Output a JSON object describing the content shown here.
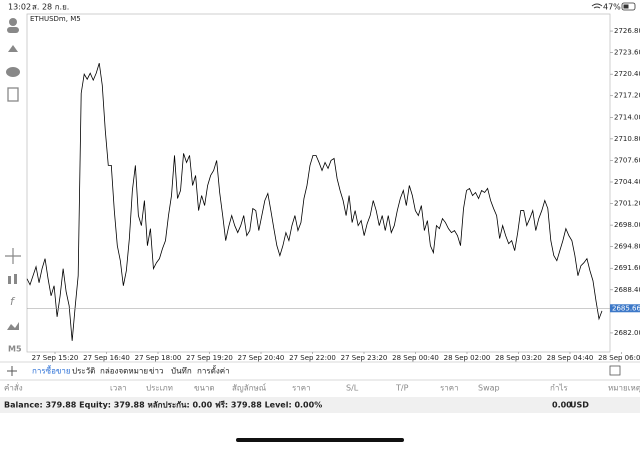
{
  "status_bar": {
    "time": "13:02",
    "date": "ส. 28 ก.ย.",
    "battery": "47%"
  },
  "chart_data": {
    "type": "line",
    "title": "ETHUSDm, M5",
    "color": "#000000",
    "values": [
      2690.04,
      2689.15,
      2690.49,
      2691.83,
      2689.45,
      2691.53,
      2693.02,
      2690.04,
      2687.51,
      2689.0,
      2684.39,
      2687.51,
      2691.53,
      2688.11,
      2686.03,
      2680.82,
      2685.88,
      2690.49,
      2717.57,
      2720.4,
      2719.65,
      2720.55,
      2719.51,
      2720.55,
      2722.04,
      2718.76,
      2712.07,
      2706.86,
      2706.86,
      2700.16,
      2694.95,
      2692.72,
      2689.0,
      2691.23,
      2696.0,
      2703.14,
      2706.86,
      2699.42,
      2697.93,
      2701.65,
      2694.95,
      2697.48,
      2691.53,
      2692.42,
      2693.02,
      2694.51,
      2695.7,
      2699.42,
      2702.39,
      2708.35,
      2701.95,
      2703.14,
      2708.64,
      2707.3,
      2708.35,
      2703.88,
      2705.37,
      2700.16,
      2702.39,
      2700.91,
      2703.88,
      2705.37,
      2706.11,
      2707.6,
      2702.84,
      2699.42,
      2695.7,
      2697.78,
      2699.42,
      2697.93,
      2696.89,
      2697.93,
      2699.42,
      2696.44,
      2697.19,
      2700.46,
      2700.16,
      2697.19,
      2699.42,
      2701.65,
      2702.69,
      2700.16,
      2697.48,
      2694.95,
      2693.47,
      2694.95,
      2696.89,
      2695.7,
      2697.93,
      2699.42,
      2697.19,
      2698.38,
      2701.95,
      2703.88,
      2706.86,
      2708.35,
      2708.35,
      2707.3,
      2706.11,
      2707.3,
      2706.41,
      2707.6,
      2707.9,
      2704.92,
      2703.14,
      2701.65,
      2699.42,
      2702.39,
      2698.38,
      2700.16,
      2697.93,
      2698.67,
      2696.44,
      2698.23,
      2699.42,
      2701.65,
      2700.16,
      2697.93,
      2699.42,
      2697.19,
      2699.42,
      2696.89,
      2697.93,
      2700.16,
      2701.95,
      2703.14,
      2700.91,
      2703.88,
      2702.39,
      2700.16,
      2699.42,
      2700.91,
      2697.19,
      2698.67,
      2694.95,
      2693.91,
      2697.93,
      2697.48,
      2698.97,
      2698.38,
      2697.48,
      2696.89,
      2697.19,
      2696.44,
      2694.95,
      2700.46,
      2703.14,
      2703.44,
      2702.39,
      2702.84,
      2701.95,
      2703.14,
      2702.84,
      2703.44,
      2701.65,
      2700.46,
      2699.42,
      2696.0,
      2697.93,
      2696.44,
      2695.25,
      2695.7,
      2694.21,
      2696.89,
      2700.16,
      2700.16,
      2697.93,
      2698.97,
      2700.16,
      2697.19,
      2698.97,
      2700.16,
      2701.65,
      2700.46,
      2695.7,
      2693.47,
      2692.72,
      2694.21,
      2695.7,
      2697.48,
      2696.44,
      2695.7,
      2693.47,
      2690.49,
      2691.98,
      2692.42,
      2693.02,
      2691.23,
      2689.75,
      2686.77,
      2684.09,
      2685.28
    ],
    "ylim": [
      2679.17,
      2729.33
    ],
    "yticks": [
      {
        "value": 2726.8,
        "label": "2726.80"
      },
      {
        "value": 2723.6,
        "label": "2723.60"
      },
      {
        "value": 2720.4,
        "label": "2720.40"
      },
      {
        "value": 2717.2,
        "label": "2717.20"
      },
      {
        "value": 2714.0,
        "label": "2714.00"
      },
      {
        "value": 2710.8,
        "label": "2710.80"
      },
      {
        "value": 2707.6,
        "label": "2707.60"
      },
      {
        "value": 2704.4,
        "label": "2704.40"
      },
      {
        "value": 2701.2,
        "label": "2701.20"
      },
      {
        "value": 2698.0,
        "label": "2698.00"
      },
      {
        "value": 2694.8,
        "label": "2694.80"
      },
      {
        "value": 2691.6,
        "label": "2691.60"
      },
      {
        "value": 2688.4,
        "label": "2688.40"
      },
      {
        "value": 2682.0,
        "label": "2682.00"
      }
    ],
    "x_labels": [
      "27 Sep 15:20",
      "27 Sep 16:40",
      "27 Sep 18:00",
      "27 Sep 19:20",
      "27 Sep 20:40",
      "27 Sep 22:00",
      "27 Sep 23:20",
      "28 Sep 00:40",
      "28 Sep 02:00",
      "28 Sep 03:20",
      "28 Sep 04:40",
      "28 Sep 06:00"
    ],
    "last_price": 2685.66
  },
  "tabs": [
    "การซื้อขาย",
    "ประวัติ",
    "กล่องจดหมาย",
    "ข่าว",
    "บันทึก",
    "การตั้งค่า"
  ],
  "columns": [
    "คำสั่ง",
    "เวลา",
    "ประเภท",
    "ขนาด",
    "สัญลักษณ์",
    "ราคา",
    "S/L",
    "T/P",
    "ราคา",
    "Swap",
    "กำไร",
    "หมายเหตุ"
  ],
  "account": {
    "summary": "Balance: 379.88 Equity: 379.88 หลักประกัน: 0.00 ฟรี: 379.88 Level: 0.00%",
    "profit": "0.00",
    "currency": "USD"
  }
}
